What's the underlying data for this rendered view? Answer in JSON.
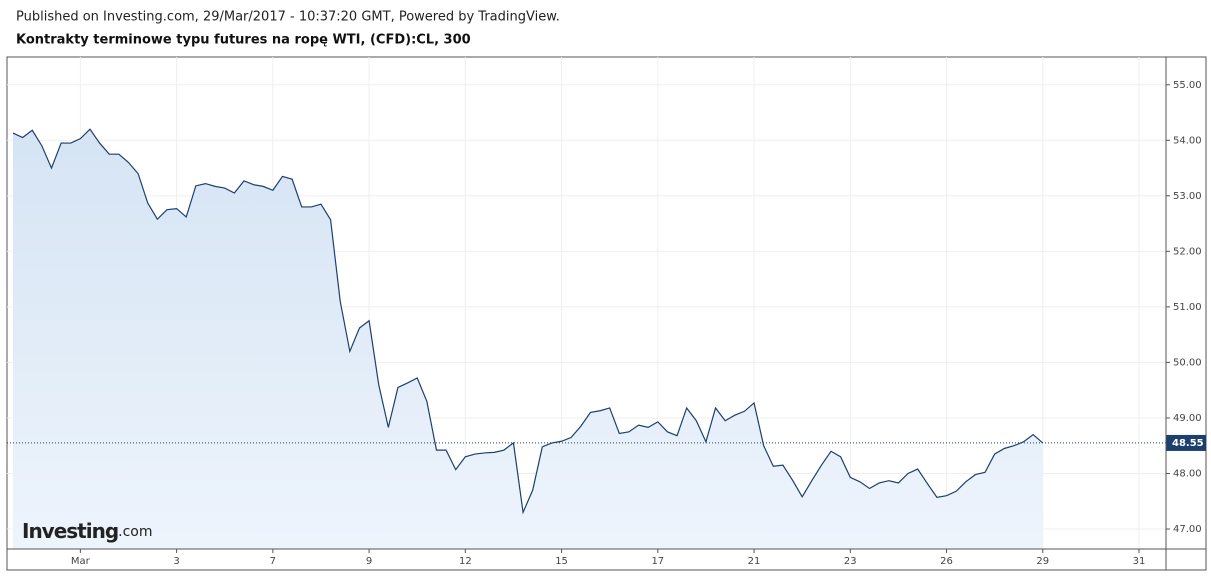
{
  "header": "Published on Investing.com, 29/Mar/2017 - 10:37:20 GMT, Powered by TradingView.",
  "logo": {
    "brand": "Investing",
    "suffix": ".com"
  },
  "chart_data": {
    "type": "area",
    "title": "Kontrakty terminowe typu futures na ropę WTI, (CFD):CL, 300",
    "color": "#1c3f6e",
    "fill": "#dce9f7",
    "grid": true,
    "last_value_line": true,
    "categories": [
      null,
      null,
      null,
      null,
      null,
      null,
      null,
      "Mar",
      null,
      null,
      null,
      null,
      null,
      null,
      null,
      null,
      null,
      "3",
      null,
      null,
      null,
      null,
      null,
      null,
      null,
      null,
      null,
      "7",
      null,
      null,
      null,
      null,
      null,
      null,
      null,
      null,
      null,
      "9",
      null,
      null,
      null,
      null,
      null,
      null,
      null,
      null,
      null,
      "12",
      null,
      null,
      null,
      null,
      null,
      null,
      null,
      null,
      null,
      "15",
      null,
      null,
      null,
      null,
      null,
      null,
      null,
      null,
      null,
      "17",
      null,
      null,
      null,
      null,
      null,
      null,
      null,
      null,
      null,
      "21",
      null,
      null,
      null,
      null,
      null,
      null,
      null,
      null,
      null,
      "23",
      null,
      null,
      null,
      null,
      null,
      null,
      null,
      null,
      null,
      "26",
      null,
      null,
      null,
      null,
      null,
      null,
      null,
      null,
      null,
      "29",
      null,
      null,
      null,
      null,
      null,
      null,
      null,
      null,
      null,
      "31",
      null,
      null
    ],
    "values": [
      54.13,
      54.05,
      54.18,
      53.9,
      53.5,
      53.95,
      53.95,
      54.03,
      54.2,
      53.95,
      53.75,
      53.75,
      53.6,
      53.4,
      52.87,
      52.58,
      52.75,
      52.77,
      52.62,
      53.18,
      53.22,
      53.17,
      53.14,
      53.05,
      53.27,
      53.2,
      53.17,
      53.1,
      53.35,
      53.3,
      52.8,
      52.8,
      52.85,
      52.57,
      51.1,
      50.2,
      50.62,
      50.75,
      49.6,
      48.83,
      49.55,
      49.63,
      49.72,
      49.3,
      48.42,
      48.42,
      48.07,
      48.3,
      48.35,
      48.37,
      48.38,
      48.42,
      48.55,
      47.3,
      47.7,
      48.48,
      48.55,
      48.58,
      48.65,
      48.85,
      49.1,
      49.13,
      49.18,
      48.72,
      48.75,
      48.87,
      48.83,
      48.93,
      48.75,
      48.68,
      49.18,
      48.95,
      48.57,
      49.18,
      48.95,
      49.05,
      49.12,
      49.27,
      48.5,
      48.13,
      48.15,
      47.88,
      47.58,
      47.87,
      48.15,
      48.4,
      48.3,
      47.93,
      47.85,
      47.73,
      47.83,
      47.87,
      47.83,
      48.0,
      48.08,
      47.82,
      47.57,
      47.6,
      47.68,
      47.85,
      47.98,
      48.02,
      48.35,
      48.45,
      48.5,
      48.57,
      48.7,
      48.55,
      null,
      null,
      null,
      null,
      null,
      null,
      null,
      null,
      null,
      null,
      null,
      null
    ],
    "ylim": [
      46.64,
      55.5
    ],
    "yticks": [
      {
        "value": 47,
        "label": "47.00"
      },
      {
        "value": 48,
        "label": "48.00"
      },
      {
        "value": 49,
        "label": "49.00"
      },
      {
        "value": 50,
        "label": "50.00"
      },
      {
        "value": 51,
        "label": "51.00"
      },
      {
        "value": 52,
        "label": "52.00"
      },
      {
        "value": 53,
        "label": "53.00"
      },
      {
        "value": 54,
        "label": "54.00"
      },
      {
        "value": 55,
        "label": "55.00"
      }
    ]
  }
}
